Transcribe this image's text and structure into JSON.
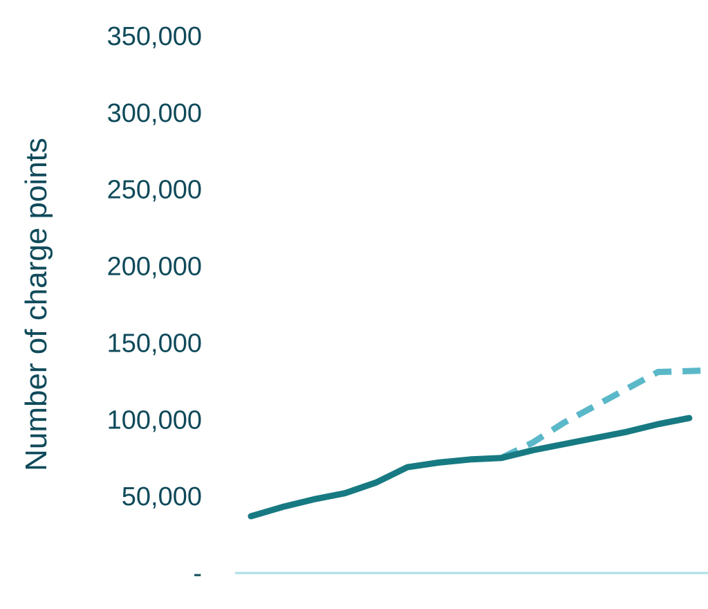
{
  "chart_data": {
    "type": "line",
    "ylabel": "Number of charge points",
    "ylim": [
      0,
      350000
    ],
    "y_ticks": [
      {
        "value": 350000,
        "label": "350,000"
      },
      {
        "value": 300000,
        "label": "300,000"
      },
      {
        "value": 250000,
        "label": "250,000"
      },
      {
        "value": 200000,
        "label": "200,000"
      },
      {
        "value": 150000,
        "label": "150,000"
      },
      {
        "value": 100000,
        "label": "100,000"
      },
      {
        "value": 50000,
        "label": "50,000"
      },
      {
        "value": 0,
        "label": "-"
      }
    ],
    "x": [
      0,
      1,
      2,
      3,
      4,
      5,
      6,
      7,
      8,
      9,
      10,
      11,
      12,
      13,
      14
    ],
    "xlim": [
      0,
      14.6
    ],
    "series": [
      {
        "values": [
          37000,
          43000,
          48000,
          52000,
          59000,
          69000,
          72000,
          74000,
          75000,
          80000,
          84000,
          88000,
          92000,
          97000,
          101000
        ],
        "color": "#177a82",
        "style": "solid"
      },
      {
        "start_index": 8,
        "values": [
          75000,
          85000,
          98000,
          109000,
          120000,
          131000
        ],
        "x": [
          8,
          9,
          10,
          11,
          12,
          13
        ],
        "extend_to": {
          "x": 14.6,
          "y": 132000
        },
        "color": "#5ab8c8",
        "style": "dashed"
      }
    ],
    "baseline_color": "#a9dfe3",
    "grid": false
  }
}
